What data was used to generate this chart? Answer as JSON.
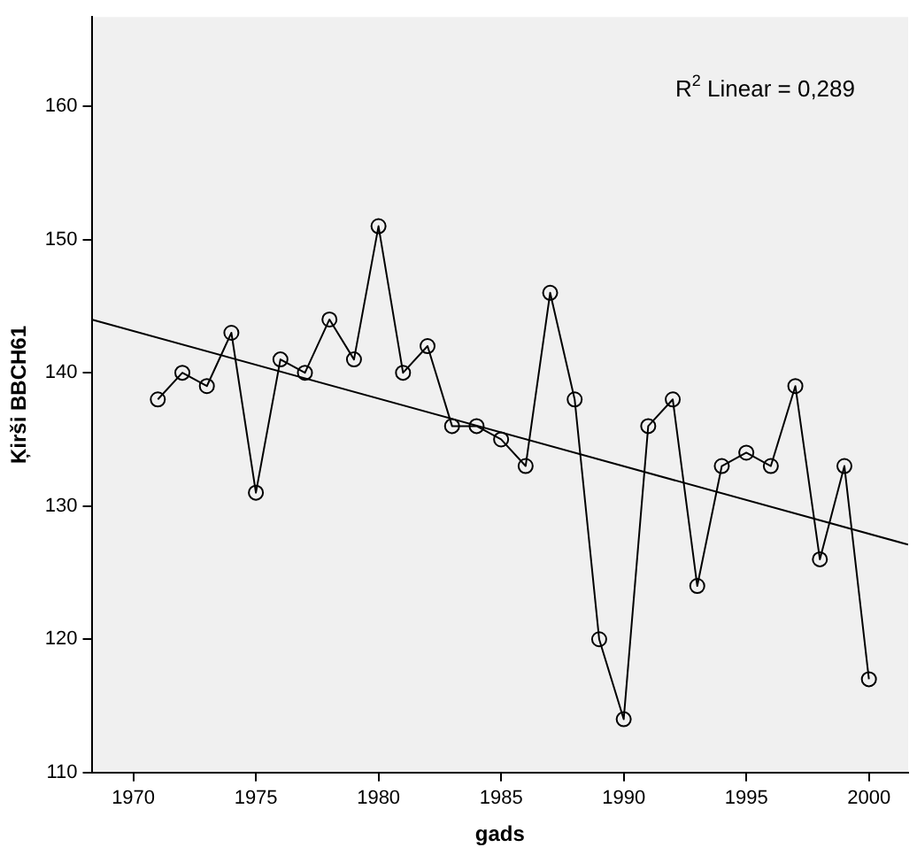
{
  "chart_data": {
    "type": "line",
    "xlabel": "gads",
    "ylabel": "Ķirši BBCH61",
    "x": [
      1971,
      1972,
      1973,
      1974,
      1975,
      1976,
      1977,
      1978,
      1979,
      1980,
      1981,
      1982,
      1983,
      1984,
      1985,
      1986,
      1987,
      1988,
      1989,
      1990,
      1991,
      1992,
      1993,
      1994,
      1995,
      1996,
      1997,
      1998,
      1999,
      2000
    ],
    "series": [
      {
        "color": "#000000",
        "values": [
          138,
          140,
          139,
          143,
          131,
          141,
          140,
          144,
          141,
          151,
          140,
          142,
          136,
          136,
          135,
          133,
          146,
          138,
          120,
          114,
          136,
          138,
          124,
          133,
          134,
          133,
          139,
          126,
          133,
          117
        ]
      },
      {
        "type": "line",
        "color": "#000000",
        "marker": "none",
        "x": [
          1968.3,
          2001.6
        ],
        "values": [
          144.0,
          127.1
        ]
      }
    ],
    "annotations": [
      "R$^{2}$ Linear = 0,289"
    ],
    "xlim": [
      1968.3,
      2001.6
    ],
    "xticks": [
      1970,
      1975,
      1980,
      1985,
      1990,
      1995,
      2000
    ],
    "ylim": [
      110,
      166.7
    ],
    "yticks": [
      110,
      120,
      130,
      140,
      150,
      160
    ],
    "grid": false,
    "legend": false,
    "marker": "circle",
    "line_style": "solid"
  }
}
